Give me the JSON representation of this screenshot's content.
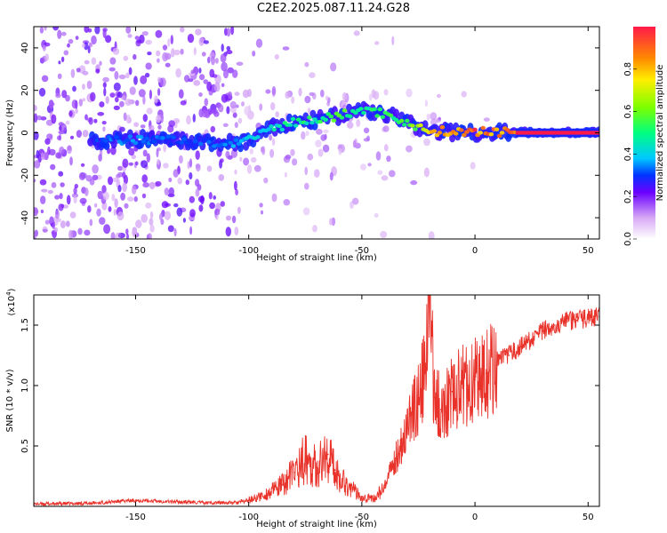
{
  "title": "C2E2.2025.087.11.24.G28",
  "colors": {
    "snr_line": "#e8322a",
    "scatter": "#7a20d8",
    "axis": "#000000"
  },
  "chart_data": [
    {
      "type": "heatmap",
      "title": "C2E2.2025.087.11.24.G28",
      "xlabel": "Height of straight line (km)",
      "ylabel": "Frequency (Hz)",
      "xlim": [
        -195,
        55
      ],
      "ylim": [
        -50,
        50
      ],
      "xticks": [
        -150,
        -100,
        -50,
        0,
        50
      ],
      "xtick_labels": [
        "-150",
        "-100",
        "-50",
        "0",
        "50"
      ],
      "yticks": [
        -40,
        -20,
        0,
        20,
        40
      ],
      "ytick_labels": [
        "-40",
        "-20",
        "0",
        "20",
        "40"
      ],
      "colorbar": {
        "label": "Normalized spectral amplitude",
        "range": [
          0,
          1
        ],
        "ticks": [
          0,
          0.2,
          0.4,
          0.6,
          0.8
        ],
        "tick_labels": [
          "0.0",
          "0.2",
          "0.4",
          "0.6",
          "0.8"
        ]
      },
      "ridge": {
        "x": [
          -170,
          -150,
          -130,
          -110,
          -100,
          -90,
          -80,
          -70,
          -60,
          -50,
          -40,
          -30,
          -25,
          -20,
          -10,
          0,
          10,
          20,
          30,
          40,
          55
        ],
        "y": [
          -4,
          -3,
          -4,
          -5,
          -4,
          2,
          5,
          6,
          8,
          11,
          9,
          5,
          2,
          1,
          0.5,
          0.3,
          0.3,
          0.2,
          0.2,
          0.2,
          0.2
        ],
        "amplitude": [
          0.3,
          0.35,
          0.3,
          0.35,
          0.4,
          0.45,
          0.5,
          0.5,
          0.55,
          0.5,
          0.5,
          0.55,
          0.65,
          0.8,
          0.85,
          0.9,
          0.9,
          0.95,
          1.0,
          1.0,
          1.0
        ]
      }
    },
    {
      "type": "line",
      "xlabel": "Height of straight line (km)",
      "ylabel": "SNR (10 * v/v)",
      "scale_label": "(x10",
      "scale_exp": "4",
      "xlim": [
        -195,
        55
      ],
      "ylim": [
        0,
        17500
      ],
      "xticks": [
        -150,
        -100,
        -50,
        0,
        50
      ],
      "xtick_labels": [
        "-150",
        "-100",
        "-50",
        "0",
        "50"
      ],
      "yticks": [
        5000,
        10000,
        15000
      ],
      "ytick_labels": [
        "0.5",
        "1.0",
        "1.5"
      ],
      "x": [
        -195,
        -170,
        -150,
        -120,
        -105,
        -100,
        -95,
        -90,
        -85,
        -80,
        -75,
        -70,
        -65,
        -62,
        -60,
        -55,
        -50,
        -45,
        -40,
        -35,
        -30,
        -25,
        -22,
        -20,
        -18,
        -15,
        -10,
        -5,
        0,
        5,
        10,
        15,
        20,
        25,
        30,
        35,
        40,
        45,
        50,
        55
      ],
      "y": [
        200,
        250,
        500,
        300,
        300,
        500,
        800,
        1200,
        1800,
        2800,
        4000,
        3200,
        4300,
        3000,
        2500,
        1500,
        800,
        600,
        1500,
        4000,
        6500,
        9000,
        11000,
        17500,
        9000,
        8000,
        9500,
        10000,
        10500,
        11000,
        12000,
        12500,
        13200,
        13800,
        14500,
        15000,
        15300,
        15400,
        15600,
        15700
      ]
    }
  ]
}
